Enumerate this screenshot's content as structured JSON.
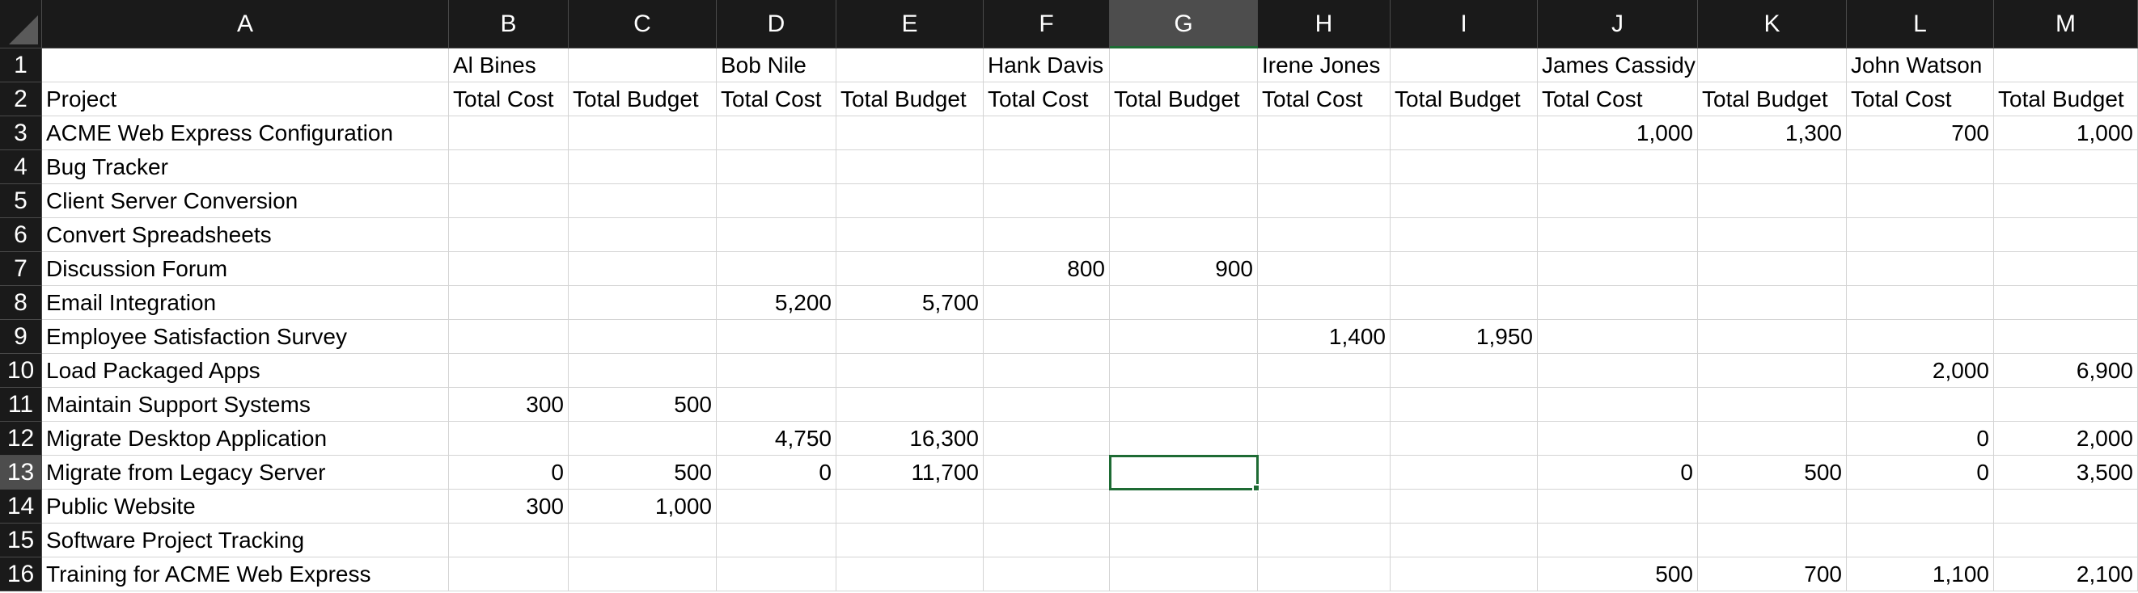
{
  "sheet": {
    "columns": [
      "A",
      "B",
      "C",
      "D",
      "E",
      "F",
      "G",
      "H",
      "I",
      "J",
      "K",
      "L",
      "M"
    ],
    "rows": [
      "1",
      "2",
      "3",
      "4",
      "5",
      "6",
      "7",
      "8",
      "9",
      "10",
      "11",
      "12",
      "13",
      "14",
      "15",
      "16"
    ],
    "selected_cell": "G13",
    "cells": {
      "B1": "Al Bines",
      "D1": "Bob Nile",
      "F1": "Hank Davis",
      "H1": "Irene Jones",
      "J1": "James Cassidy",
      "L1": "John Watson",
      "A2": "Project",
      "B2": "Total Cost",
      "C2": "Total Budget",
      "D2": "Total Cost",
      "E2": "Total Budget",
      "F2": "Total Cost",
      "G2": "Total Budget",
      "H2": "Total Cost",
      "I2": "Total Budget",
      "J2": "Total Cost",
      "K2": "Total Budget",
      "L2": "Total Cost",
      "M2": "Total Budget",
      "A3": "ACME Web Express Configuration",
      "J3": "1,000",
      "K3": "1,300",
      "L3": "700",
      "M3": "1,000",
      "A4": "Bug Tracker",
      "A5": "Client Server Conversion",
      "A6": "Convert Spreadsheets",
      "A7": "Discussion Forum",
      "F7": "800",
      "G7": "900",
      "A8": "Email Integration",
      "D8": "5,200",
      "E8": "5,700",
      "A9": "Employee Satisfaction Survey",
      "H9": "1,400",
      "I9": "1,950",
      "A10": "Load Packaged Apps",
      "L10": "2,000",
      "M10": "6,900",
      "A11": "Maintain Support Systems",
      "B11": "300",
      "C11": "500",
      "A12": "Migrate Desktop Application",
      "D12": "4,750",
      "E12": "16,300",
      "L12": "0",
      "M12": "2,000",
      "A13": "Migrate from Legacy Server",
      "B13": "0",
      "C13": "500",
      "D13": "0",
      "E13": "11,700",
      "J13": "0",
      "K13": "500",
      "L13": "0",
      "M13": "3,500",
      "A14": "Public Website",
      "B14": "300",
      "C14": "1,000",
      "A15": "Software Project Tracking",
      "A16": "Training for ACME Web Express",
      "J16": "500",
      "K16": "700",
      "L16": "1,100",
      "M16": "2,100"
    }
  }
}
